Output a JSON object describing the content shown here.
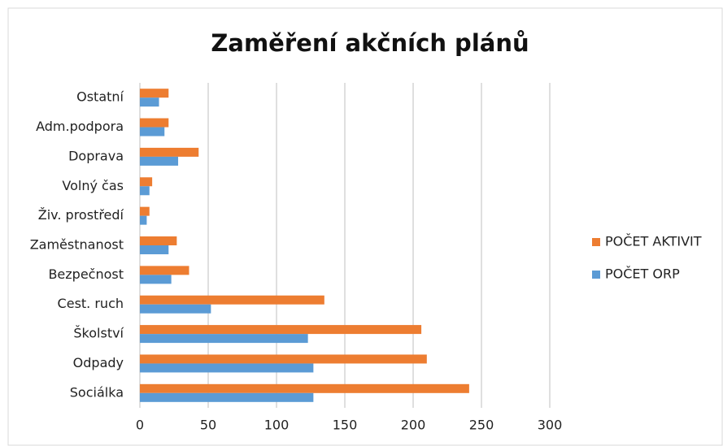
{
  "chart_data": {
    "type": "hbar",
    "title": "Zaměření akčních plánů",
    "categories": [
      "Sociálka",
      "Odpady",
      "Školství",
      "Cest. ruch",
      "Bezpečnost",
      "Zaměstnanost",
      "Živ. prostředí",
      "Volný čas",
      "Doprava",
      "Adm.podpora",
      "Ostatní"
    ],
    "series": [
      {
        "name": "POČET AKTIVIT",
        "color": "#ed7d31",
        "values": [
          241,
          210,
          206,
          135,
          36,
          27,
          7,
          9,
          43,
          21,
          21
        ]
      },
      {
        "name": "POČET ORP",
        "color": "#5b9bd5",
        "values": [
          127,
          127,
          123,
          52,
          23,
          21,
          5,
          7,
          28,
          18,
          14
        ]
      }
    ],
    "xlim": [
      0,
      300
    ],
    "xticks": [
      0,
      50,
      100,
      150,
      200,
      250,
      300
    ],
    "grid": true,
    "legend": "right"
  }
}
